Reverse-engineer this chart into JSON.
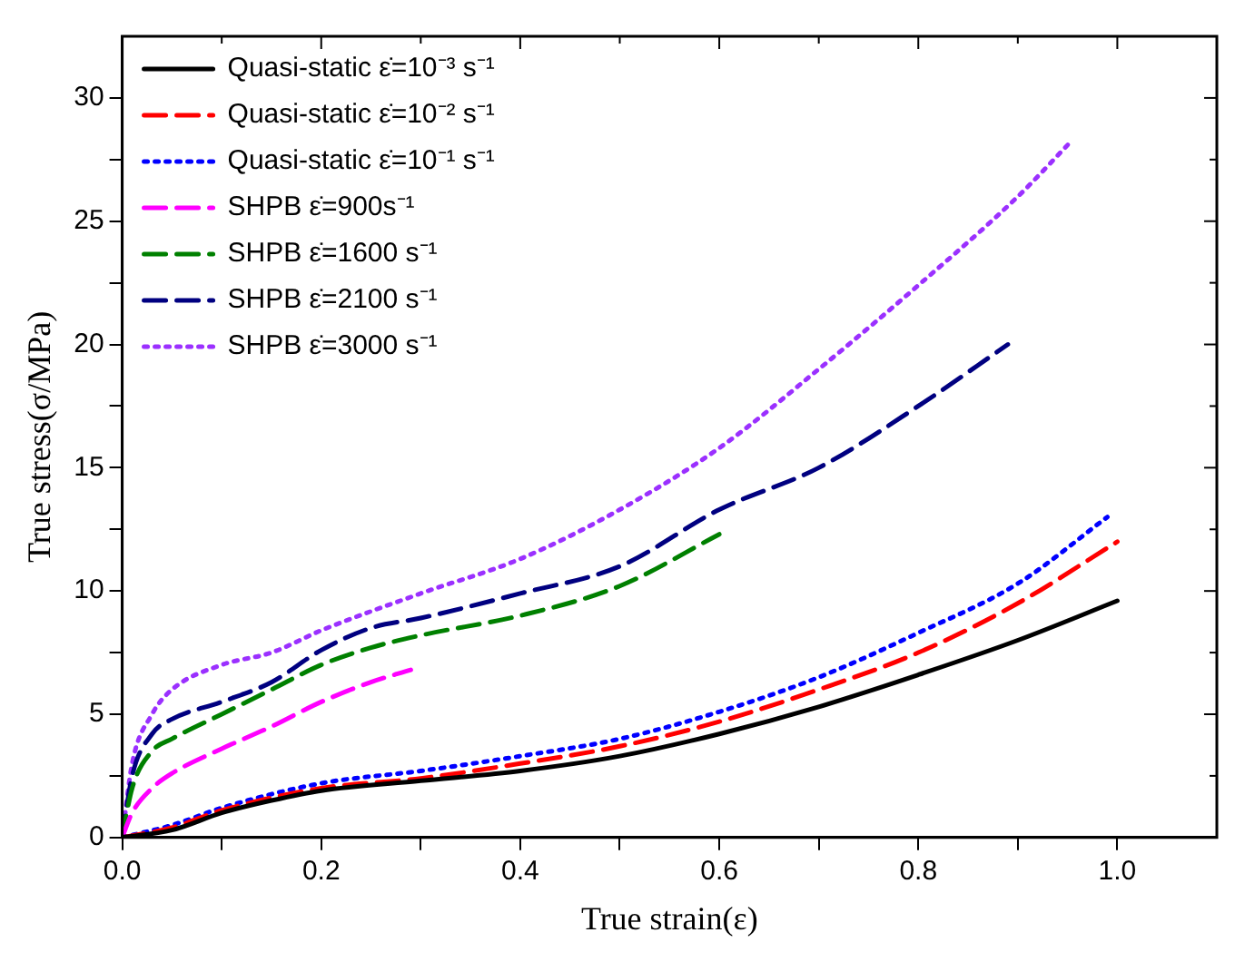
{
  "chart_data": {
    "type": "line",
    "xlabel": "True strain(ε)",
    "ylabel": "True stress(σ/MPa)",
    "xlim": [
      0,
      1.1
    ],
    "ylim": [
      0,
      32.5
    ],
    "xticks": [
      {
        "value": 0,
        "label": "0.0"
      },
      {
        "value": 0.1,
        "label": null
      },
      {
        "value": 0.2,
        "label": "0.2"
      },
      {
        "value": 0.3,
        "label": null
      },
      {
        "value": 0.4,
        "label": "0.4"
      },
      {
        "value": 0.5,
        "label": null
      },
      {
        "value": 0.6,
        "label": "0.6"
      },
      {
        "value": 0.7,
        "label": null
      },
      {
        "value": 0.8,
        "label": "0.8"
      },
      {
        "value": 0.9,
        "label": null
      },
      {
        "value": 1,
        "label": "1.0"
      }
    ],
    "yticks": [
      0,
      {
        "value": 2.5,
        "label": null
      },
      5,
      {
        "value": 7.5,
        "label": null
      },
      10,
      {
        "value": 12.5,
        "label": null
      },
      15,
      {
        "value": 17.5,
        "label": null
      },
      20,
      {
        "value": 22.5,
        "label": null
      },
      25,
      {
        "value": 27.5,
        "label": null
      },
      30
    ],
    "grid": false,
    "legend": "top left",
    "marker": "none",
    "series": [
      {
        "name": "Quasi-static ε̇=10⁻³ s⁻¹",
        "color": "#000000",
        "line_style": "solid",
        "x": [
          0,
          0.05,
          0.1,
          0.15,
          0.2,
          0.3,
          0.4,
          0.5,
          0.6,
          0.7,
          0.8,
          0.9,
          1.0
        ],
        "values": [
          0,
          0.3,
          1.0,
          1.5,
          1.9,
          2.3,
          2.7,
          3.3,
          4.2,
          5.3,
          6.6,
          8.0,
          9.6
        ]
      },
      {
        "name": "Quasi-static ε̇=10⁻² s⁻¹",
        "color": "#ff0000",
        "line_style": "dashed",
        "x": [
          0,
          0.05,
          0.1,
          0.2,
          0.3,
          0.4,
          0.5,
          0.6,
          0.7,
          0.8,
          0.9,
          1.0
        ],
        "values": [
          0,
          0.4,
          1.1,
          2.0,
          2.4,
          3.0,
          3.7,
          4.7,
          6.0,
          7.5,
          9.5,
          12.0
        ]
      },
      {
        "name": "Quasi-static ε̇=10⁻¹ s⁻¹",
        "color": "#0000ff",
        "line_style": "dotted",
        "x": [
          0,
          0.05,
          0.1,
          0.2,
          0.3,
          0.4,
          0.5,
          0.6,
          0.7,
          0.8,
          0.9,
          0.99
        ],
        "values": [
          0,
          0.5,
          1.2,
          2.2,
          2.7,
          3.3,
          4.0,
          5.1,
          6.5,
          8.3,
          10.3,
          13.0
        ]
      },
      {
        "name": "SHPB ε̇=900s⁻¹",
        "color": "#ff00ff",
        "line_style": "dashed",
        "x": [
          0,
          0.01,
          0.03,
          0.05,
          0.1,
          0.15,
          0.2,
          0.25,
          0.29
        ],
        "values": [
          0,
          1.0,
          2.0,
          2.6,
          3.6,
          4.5,
          5.5,
          6.3,
          6.8
        ]
      },
      {
        "name": "SHPB ε̇=1600 s⁻¹",
        "color": "#008000",
        "line_style": "dashed",
        "x": [
          0,
          0.01,
          0.03,
          0.05,
          0.1,
          0.15,
          0.2,
          0.25,
          0.3,
          0.4,
          0.5,
          0.6
        ],
        "values": [
          0,
          2.0,
          3.5,
          4.0,
          5.0,
          6.0,
          7.0,
          7.7,
          8.2,
          9.0,
          10.2,
          12.3
        ]
      },
      {
        "name": "SHPB ε̇=2100 s⁻¹",
        "color": "#000080",
        "line_style": "dashed",
        "x": [
          0,
          0.01,
          0.03,
          0.05,
          0.1,
          0.15,
          0.2,
          0.25,
          0.3,
          0.4,
          0.5,
          0.6,
          0.7,
          0.8,
          0.89
        ],
        "values": [
          0,
          2.5,
          4.2,
          4.8,
          5.5,
          6.3,
          7.6,
          8.5,
          8.9,
          9.9,
          11.0,
          13.3,
          15.0,
          17.5,
          20.0
        ]
      },
      {
        "name": "SHPB ε̇=3000 s⁻¹",
        "color": "#9b30ff",
        "line_style": "dotted",
        "x": [
          0,
          0.01,
          0.03,
          0.05,
          0.1,
          0.15,
          0.2,
          0.3,
          0.4,
          0.5,
          0.6,
          0.7,
          0.8,
          0.9,
          0.955
        ],
        "values": [
          0,
          3.0,
          5.0,
          6.0,
          7.0,
          7.5,
          8.4,
          9.9,
          11.3,
          13.3,
          15.8,
          19.0,
          22.4,
          26.0,
          28.3
        ]
      }
    ]
  }
}
